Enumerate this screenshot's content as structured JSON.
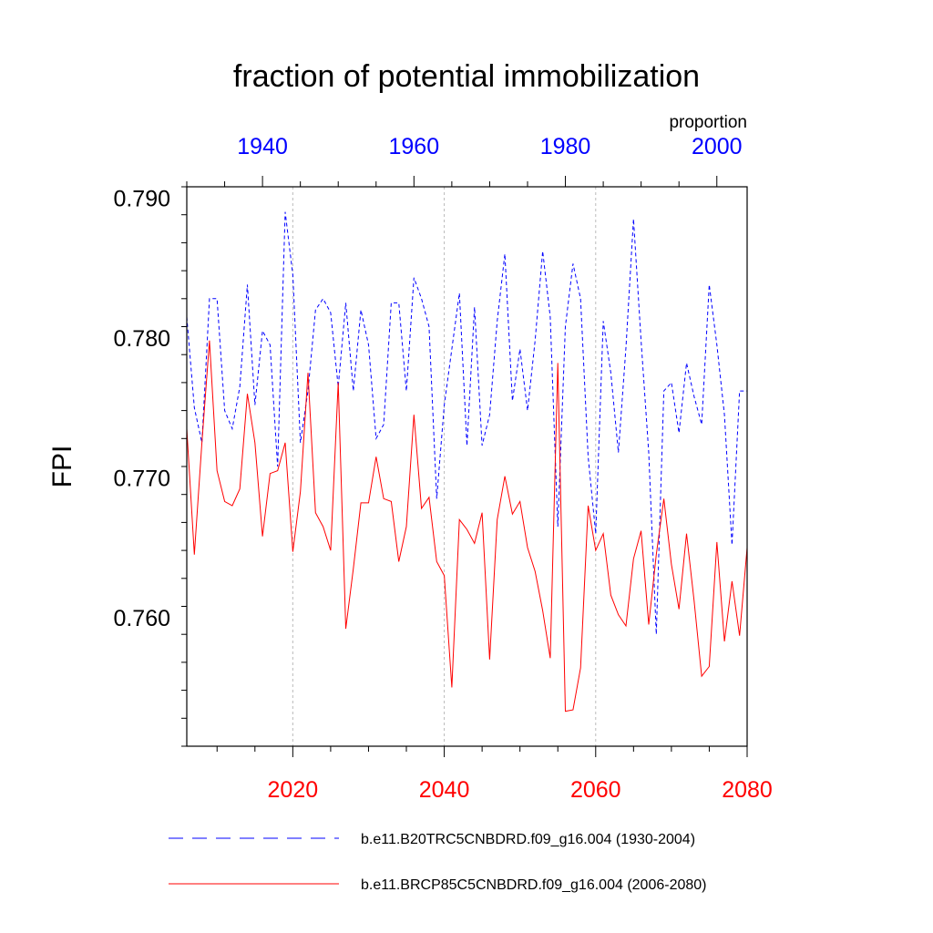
{
  "chart_data": {
    "type": "line",
    "title": "fraction of potential immobilization",
    "units_label": "proportion",
    "ylabel": "FPI",
    "ylim": [
      0.7508,
      0.7908
    ],
    "y_ticks": [
      0.76,
      0.77,
      0.78,
      0.79
    ],
    "y_tick_labels": [
      "0.760",
      "0.770",
      "0.780",
      "0.790"
    ],
    "y_minor_step": 0.002,
    "grid": "vertical dashed at bottom-axis major ticks",
    "top_axis": {
      "color": "#0000ff",
      "range": [
        1930,
        2004
      ],
      "ticks": [
        1940,
        1960,
        1980,
        2000
      ],
      "tick_labels": [
        "1940",
        "1960",
        "1980",
        "2000"
      ],
      "minor_step": 5
    },
    "bottom_axis": {
      "color": "#ff0000",
      "range": [
        2006,
        2080
      ],
      "ticks": [
        2020,
        2040,
        2060,
        2080
      ],
      "tick_labels": [
        "2020",
        "2040",
        "2060",
        "2080"
      ],
      "minor_step": 5
    },
    "legend_position": "bottom",
    "series": [
      {
        "name": "b.e11.B20TRC5CNBDRD.f09_g16.004 (1930-2004)",
        "axis": "top",
        "color": "#0000ff",
        "dash": "dashed",
        "x_start": 1930,
        "values": [
          0.7815,
          0.775,
          0.7725,
          0.7828,
          0.7828,
          0.7748,
          0.7735,
          0.7765,
          0.7838,
          0.7752,
          0.7805,
          0.7795,
          0.7708,
          0.789,
          0.7845,
          0.7725,
          0.7762,
          0.782,
          0.7828,
          0.7818,
          0.7765,
          0.7825,
          0.7762,
          0.782,
          0.7795,
          0.7728,
          0.7738,
          0.7825,
          0.7825,
          0.7762,
          0.7843,
          0.7828,
          0.7808,
          0.7685,
          0.7752,
          0.7792,
          0.7832,
          0.7723,
          0.7822,
          0.7723,
          0.7745,
          0.7812,
          0.786,
          0.7755,
          0.7792,
          0.7748,
          0.7798,
          0.7862,
          0.7815,
          0.7665,
          0.7808,
          0.7853,
          0.7828,
          0.7715,
          0.766,
          0.7812,
          0.7775,
          0.7718,
          0.7793,
          0.7885,
          0.7798,
          0.7718,
          0.7588,
          0.7762,
          0.7768,
          0.7732,
          0.7782,
          0.7758,
          0.7738,
          0.7838,
          0.7795,
          0.7745,
          0.7652,
          0.7762,
          0.7762
        ]
      },
      {
        "name": "b.e11.BRCP85C5CNBDRD.f09_g16.004 (2006-2080)",
        "axis": "bottom",
        "color": "#ff0000",
        "dash": "solid",
        "x_start": 2006,
        "values": [
          0.7735,
          0.7645,
          0.7725,
          0.7798,
          0.7705,
          0.7683,
          0.768,
          0.7692,
          0.776,
          0.7725,
          0.7658,
          0.7703,
          0.7705,
          0.7725,
          0.7647,
          0.769,
          0.7775,
          0.7675,
          0.7665,
          0.7648,
          0.7768,
          0.7592,
          0.7635,
          0.7682,
          0.7682,
          0.7715,
          0.7685,
          0.7683,
          0.764,
          0.7665,
          0.7745,
          0.7678,
          0.7686,
          0.764,
          0.763,
          0.755,
          0.767,
          0.7663,
          0.7653,
          0.7675,
          0.757,
          0.767,
          0.7701,
          0.7674,
          0.7683,
          0.765,
          0.7633,
          0.7605,
          0.7571,
          0.7782,
          0.7533,
          0.7534,
          0.7564,
          0.768,
          0.7648,
          0.766,
          0.7616,
          0.7602,
          0.7594,
          0.7642,
          0.7662,
          0.7595,
          0.7645,
          0.7685,
          0.7638,
          0.7606,
          0.766,
          0.7612,
          0.7558,
          0.7565,
          0.7654,
          0.7583,
          0.7626,
          0.7587,
          0.765
        ]
      }
    ]
  }
}
